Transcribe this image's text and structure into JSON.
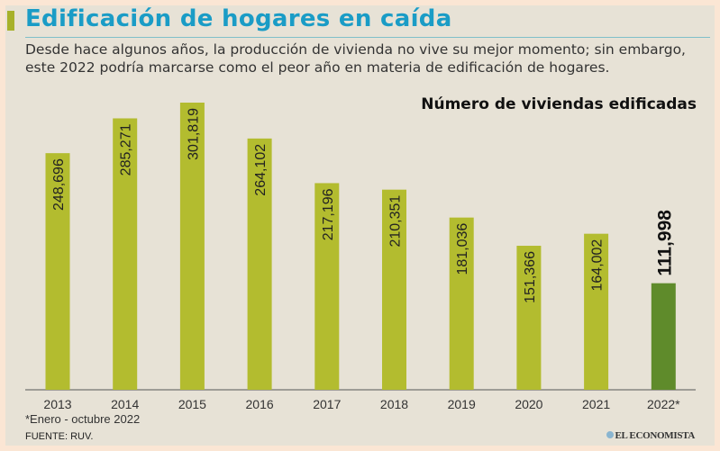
{
  "header": {
    "title": "Edificación de hogares en caída",
    "subtitle": "Desde hace algunos años, la producción de vivienda no vive su mejor momento; sin embargo, este 2022 podría marcarse como el peor año en materia de edificación de hogares."
  },
  "chart_data": {
    "type": "bar",
    "title": "Número de viviendas edificadas",
    "categories": [
      "2013",
      "2014",
      "2015",
      "2016",
      "2017",
      "2018",
      "2019",
      "2020",
      "2021",
      "2022*"
    ],
    "values": [
      248696,
      285271,
      301819,
      264102,
      217196,
      210351,
      181036,
      151366,
      164002,
      111998
    ],
    "labels": [
      "248,696",
      "285,271",
      "301,819",
      "264,102",
      "217,196",
      "210,351",
      "181,036",
      "151,366",
      "164,002",
      "111,998"
    ],
    "ylim": [
      0,
      301819
    ],
    "grid": false,
    "colors": {
      "bar": "#b3bc2f",
      "highlight": "#5f8b2b"
    }
  },
  "footer": {
    "note": "*Enero - octubre 2022",
    "source": "FUENTE: RUV.",
    "logo": "EL ECONOMISTA"
  }
}
